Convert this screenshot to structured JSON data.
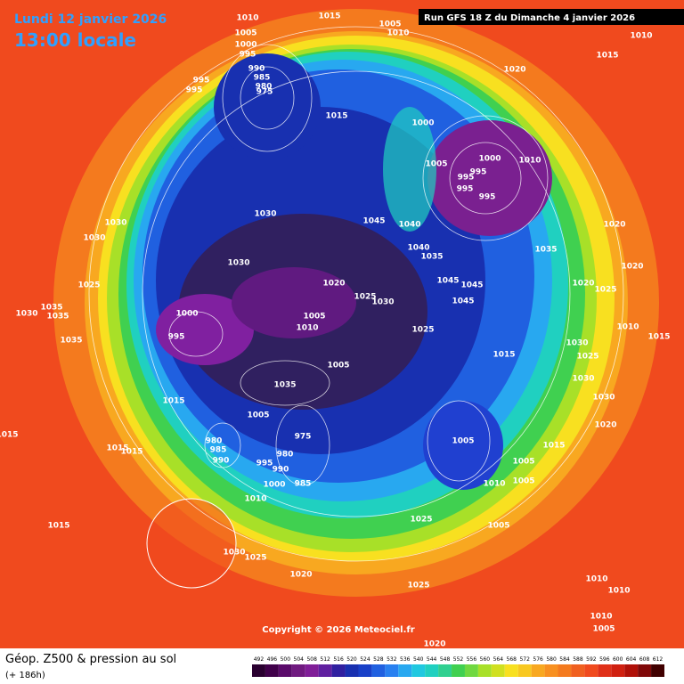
{
  "header": {
    "date": "Lundi 12 janvier 2026",
    "time": "13:00 locale",
    "run": "Run GFS 18 Z du Dimanche 4 janvier 2026"
  },
  "copyright": "Copyright © 2026 Meteociel.fr",
  "footer": {
    "title": "Géop. Z500 & pression au sol",
    "lead": "(+ 186h)"
  },
  "scale": [
    "492",
    "496",
    "500",
    "504",
    "508",
    "512",
    "516",
    "520",
    "524",
    "528",
    "532",
    "536",
    "540",
    "544",
    "548",
    "552",
    "556",
    "560",
    "564",
    "568",
    "572",
    "576",
    "580",
    "584",
    "588",
    "592",
    "596",
    "600",
    "604",
    "608",
    "612"
  ],
  "isobar_labels": [
    "1010",
    "1015",
    "1005",
    "1010",
    "1010",
    "1015",
    "1020",
    "1005",
    "1000",
    "995",
    "990",
    "985",
    "980",
    "975",
    "995",
    "995",
    "1015",
    "1000",
    "1005",
    "1000",
    "995",
    "995",
    "995",
    "995",
    "1010",
    "1030",
    "1045",
    "1040",
    "1040",
    "1035",
    "1035",
    "1030",
    "1030",
    "1030",
    "1025",
    "1020",
    "1025",
    "1030",
    "1045",
    "1045",
    "1045",
    "1000",
    "995",
    "1005",
    "1010",
    "1025",
    "1015",
    "1005",
    "1035",
    "1015",
    "1005",
    "980",
    "985",
    "990",
    "975",
    "980",
    "995",
    "990",
    "1000",
    "985",
    "1005",
    "1005",
    "1015",
    "1010",
    "1005",
    "1025",
    "1005",
    "1010",
    "1015",
    "1030",
    "1025",
    "1020",
    "1025",
    "1010",
    "1010",
    "1010",
    "1005",
    "1020",
    "1030",
    "1035",
    "1035",
    "1035",
    "1020",
    "1030",
    "1025",
    "1010",
    "1015",
    "1020",
    "1030",
    "1030",
    "1020",
    "1020",
    "1025",
    "1015",
    "1015",
    "1015"
  ]
}
